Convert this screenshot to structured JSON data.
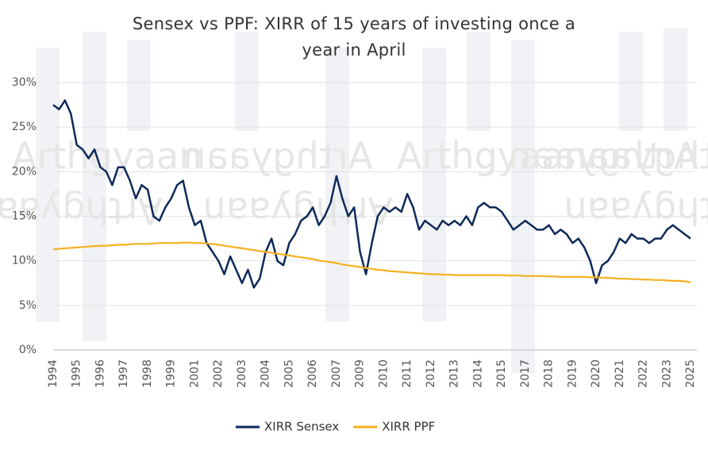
{
  "chart_data": {
    "type": "line",
    "title": "Sensex vs PPF: XIRR of 15 years of investing once a year in April",
    "watermark": "Arthgyaan",
    "categories": [
      "1994",
      null,
      null,
      null,
      "1995",
      null,
      null,
      null,
      "1996",
      null,
      null,
      null,
      "1997",
      null,
      null,
      null,
      "1998",
      null,
      null,
      null,
      "1999",
      null,
      null,
      null,
      "2001",
      null,
      null,
      null,
      "2002",
      null,
      null,
      null,
      "2003",
      null,
      null,
      null,
      "2004",
      null,
      null,
      null,
      "2005",
      null,
      null,
      null,
      "2006",
      null,
      null,
      null,
      "2007",
      null,
      null,
      null,
      "2009",
      null,
      null,
      null,
      "2010",
      null,
      null,
      null,
      "2011",
      null,
      null,
      null,
      "2012",
      null,
      null,
      null,
      "2013",
      null,
      null,
      null,
      "2014",
      null,
      null,
      null,
      "2015",
      null,
      null,
      null,
      "2017",
      null,
      null,
      null,
      "2018",
      null,
      null,
      null,
      "2019",
      null,
      null,
      null,
      "2020",
      null,
      null,
      null,
      "2021",
      null,
      null,
      null,
      "2022",
      null,
      null,
      null,
      "2023",
      null,
      null,
      null,
      "2025"
    ],
    "series": [
      {
        "name": "XIRR Sensex",
        "color": "#0e2a5a",
        "values": [
          27.5,
          27,
          28,
          26.5,
          23,
          22.5,
          21.5,
          22.5,
          20.5,
          20,
          18.5,
          20.5,
          20.5,
          19,
          17,
          18.5,
          18,
          15,
          14.5,
          16,
          17,
          18.5,
          19,
          16,
          14,
          14.5,
          12,
          11,
          10,
          8.5,
          10.5,
          9,
          7.5,
          9,
          7,
          8,
          11,
          12.5,
          10,
          9.5,
          12,
          13,
          14.5,
          15,
          16,
          14,
          15,
          16.5,
          19.5,
          17,
          15,
          16,
          11,
          8.5,
          12,
          15,
          16,
          15.5,
          16,
          15.5,
          17.5,
          16,
          13.5,
          14.5,
          14,
          13.5,
          14.5,
          14,
          14.5,
          14,
          15,
          14,
          16,
          16.5,
          16,
          16,
          15.5,
          14.5,
          13.5,
          14,
          14.5,
          14,
          13.5,
          13.5,
          14,
          13,
          13.5,
          13,
          12,
          12.5,
          11.5,
          10,
          7.5,
          9.5,
          10,
          11,
          12.5,
          12,
          13,
          12.5,
          12.5,
          12,
          12.5,
          12.5,
          13.5,
          14,
          13.5,
          13,
          12.5
        ]
      },
      {
        "name": "XIRR PPF",
        "color": "#f5b11e",
        "values": [
          11.3,
          11.35,
          11.4,
          11.45,
          11.5,
          11.55,
          11.6,
          11.65,
          11.7,
          11.7,
          11.75,
          11.8,
          11.8,
          11.85,
          11.9,
          11.9,
          11.9,
          11.95,
          12,
          12,
          12,
          12,
          12.05,
          12.05,
          12,
          12,
          11.95,
          11.9,
          11.8,
          11.7,
          11.6,
          11.5,
          11.4,
          11.3,
          11.2,
          11.1,
          11,
          10.9,
          10.8,
          10.7,
          10.6,
          10.5,
          10.4,
          10.3,
          10.2,
          10.05,
          9.95,
          9.85,
          9.75,
          9.6,
          9.5,
          9.4,
          9.3,
          9.2,
          9.1,
          9,
          8.95,
          8.85,
          8.8,
          8.75,
          8.7,
          8.65,
          8.6,
          8.55,
          8.5,
          8.5,
          8.45,
          8.45,
          8.4,
          8.4,
          8.4,
          8.4,
          8.4,
          8.4,
          8.4,
          8.4,
          8.4,
          8.35,
          8.35,
          8.35,
          8.3,
          8.3,
          8.3,
          8.3,
          8.25,
          8.25,
          8.2,
          8.2,
          8.2,
          8.2,
          8.2,
          8.15,
          8.15,
          8.1,
          8.1,
          8.05,
          8,
          8,
          7.95,
          7.95,
          7.9,
          7.9,
          7.85,
          7.85,
          7.8,
          7.75,
          7.75,
          7.7,
          7.6
        ]
      }
    ],
    "ylim": [
      0,
      30
    ],
    "yticks": [
      {
        "value": 0,
        "label": "0%"
      },
      {
        "value": 5,
        "label": "5%"
      },
      {
        "value": 10,
        "label": "10%"
      },
      {
        "value": 15,
        "label": "15%"
      },
      {
        "value": 20,
        "label": "20%"
      },
      {
        "value": 25,
        "label": "25%"
      },
      {
        "value": 30,
        "label": "30%"
      }
    ],
    "grid": true,
    "legend": "bottom"
  }
}
